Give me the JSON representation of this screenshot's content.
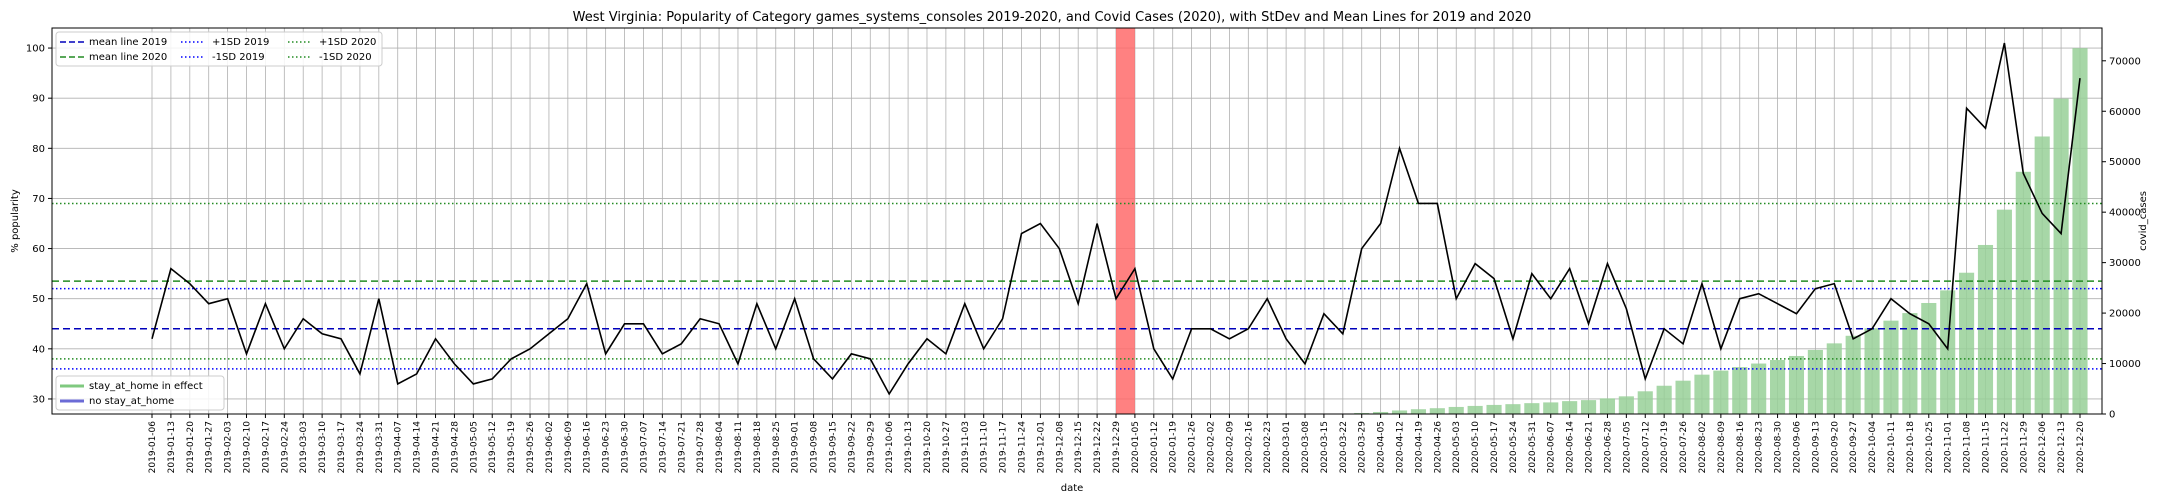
{
  "chart_data": {
    "type": "line",
    "title": "West Virginia: Popularity of Category games_systems_consoles 2019-2020, and Covid Cases (2020), with StDev and Mean Lines for 2019 and 2020",
    "xlabel": "date",
    "ylabel": "% popularity",
    "ylabel_right": "covid_cases",
    "ylim": [
      27,
      104
    ],
    "ylim_right": [
      0,
      76500
    ],
    "yticks": [
      30,
      40,
      50,
      60,
      70,
      80,
      90,
      100
    ],
    "yticks_right": [
      0,
      10000,
      20000,
      30000,
      40000,
      50000,
      60000,
      70000
    ],
    "grid": true,
    "legend_position": "top-left",
    "x": [
      "2019-01-06",
      "2019-01-13",
      "2019-01-20",
      "2019-01-27",
      "2019-02-03",
      "2019-02-10",
      "2019-02-17",
      "2019-02-24",
      "2019-03-03",
      "2019-03-10",
      "2019-03-17",
      "2019-03-24",
      "2019-03-31",
      "2019-04-07",
      "2019-04-14",
      "2019-04-21",
      "2019-04-28",
      "2019-05-05",
      "2019-05-12",
      "2019-05-19",
      "2019-05-26",
      "2019-06-02",
      "2019-06-09",
      "2019-06-16",
      "2019-06-23",
      "2019-06-30",
      "2019-07-07",
      "2019-07-14",
      "2019-07-21",
      "2019-07-28",
      "2019-08-04",
      "2019-08-11",
      "2019-08-18",
      "2019-08-25",
      "2019-09-01",
      "2019-09-08",
      "2019-09-15",
      "2019-09-22",
      "2019-09-29",
      "2019-10-06",
      "2019-10-13",
      "2019-10-20",
      "2019-10-27",
      "2019-11-03",
      "2019-11-10",
      "2019-11-17",
      "2019-11-24",
      "2019-12-01",
      "2019-12-08",
      "2019-12-15",
      "2019-12-22",
      "2019-12-29",
      "2020-01-05",
      "2020-01-12",
      "2020-01-19",
      "2020-01-26",
      "2020-02-02",
      "2020-02-09",
      "2020-02-16",
      "2020-02-23",
      "2020-03-01",
      "2020-03-08",
      "2020-03-15",
      "2020-03-22",
      "2020-03-29",
      "2020-04-05",
      "2020-04-12",
      "2020-04-19",
      "2020-04-26",
      "2020-05-03",
      "2020-05-10",
      "2020-05-17",
      "2020-05-24",
      "2020-05-31",
      "2020-06-07",
      "2020-06-14",
      "2020-06-21",
      "2020-06-28",
      "2020-07-05",
      "2020-07-12",
      "2020-07-19",
      "2020-07-26",
      "2020-08-02",
      "2020-08-09",
      "2020-08-16",
      "2020-08-23",
      "2020-08-30",
      "2020-09-06",
      "2020-09-13",
      "2020-09-20",
      "2020-09-27",
      "2020-10-04",
      "2020-10-11",
      "2020-10-18",
      "2020-10-25",
      "2020-11-01",
      "2020-11-08",
      "2020-11-15",
      "2020-11-22",
      "2020-11-29",
      "2020-12-06",
      "2020-12-13",
      "2020-12-20"
    ],
    "xtick_labels": [
      "2019-01-06",
      "2019-01-13",
      "2019-01-20",
      "2019-01-27",
      "2019-02-03",
      "2019-02-10",
      "2019-02-17",
      "2019-02-24",
      "2019-03-03",
      "2019-03-10",
      "2019-03-17",
      "2019-03-24",
      "2019-03-31",
      "2019-04-07",
      "2019-04-14",
      "2019-04-21",
      "2019-04-28",
      "2019-05-05",
      "2019-05-12",
      "2019-05-19",
      "2019-05-26",
      "2019-06-02",
      "2019-06-09",
      "2019-06-16",
      "2019-06-23",
      "2019-06-30",
      "2019-07-07",
      "2019-07-14",
      "2019-07-21",
      "2019-07-28",
      "2019-08-04",
      "2019-08-11",
      "2019-08-18",
      "2019-08-25",
      "2019-09-01",
      "2019-09-08",
      "2019-09-15",
      "2019-09-22",
      "2019-09-29",
      "2019-10-06",
      "2019-10-13",
      "2019-10-20",
      "2019-10-27",
      "2019-11-03",
      "2019-11-10",
      "2019-11-17",
      "2019-11-24",
      "2019-12-01",
      "2019-12-08",
      "2019-12-15",
      "2019-12-22",
      "2019-12-29",
      "2020-01-05",
      "2020-01-12",
      "2020-01-19",
      "2020-01-26",
      "2020-02-02",
      "2020-02-09",
      "2020-02-16",
      "2020-02-23",
      "2020-03-01",
      "2020-03-08",
      "2020-03-15",
      "2020-03-22",
      "2020-03-29",
      "2020-04-05",
      "2020-04-12",
      "2020-04-19",
      "2020-04-26",
      "2020-05-03",
      "2020-05-10",
      "2020-05-17",
      "2020-05-24",
      "2020-05-31",
      "2020-06-07",
      "2020-06-14",
      "2020-06-21",
      "2020-06-28",
      "2020-07-05",
      "2020-07-12",
      "2020-07-19",
      "2020-07-26",
      "2020-08-02",
      "2020-08-09",
      "2020-08-16",
      "2020-08-23",
      "2020-08-30",
      "2020-09-06",
      "2020-09-13",
      "2020-09-20",
      "2020-09-27",
      "2020-10-04",
      "2020-10-11",
      "2020-10-18",
      "2020-10-25",
      "2020-11-01",
      "2020-11-08",
      "2020-11-15",
      "2020-11-22",
      "2020-11-29",
      "2020-12-06",
      "2020-12-13",
      "2020-12-20"
    ],
    "popularity": [
      42,
      56,
      53,
      49,
      50,
      39,
      49,
      40,
      46,
      43,
      42,
      35,
      50,
      33,
      35,
      42,
      37,
      33,
      34,
      38,
      40,
      43,
      46,
      53,
      39,
      45,
      45,
      39,
      41,
      46,
      45,
      37,
      49,
      40,
      50,
      38,
      34,
      39,
      38,
      31,
      37,
      42,
      39,
      49,
      40,
      46,
      63,
      65,
      60,
      49,
      65,
      50,
      56,
      40,
      34,
      44,
      44,
      42,
      44,
      50,
      42,
      37,
      47,
      43,
      60,
      65,
      80,
      69,
      69,
      50,
      57,
      54,
      42,
      55,
      50,
      56,
      45,
      57,
      48,
      34,
      44,
      41,
      53,
      40,
      50,
      51,
      49,
      47,
      52,
      53,
      42,
      44,
      50,
      47,
      45,
      40,
      88,
      84,
      101,
      75,
      67,
      63,
      94
    ],
    "covid_cases": [
      null,
      null,
      null,
      null,
      null,
      null,
      null,
      null,
      null,
      null,
      null,
      null,
      null,
      null,
      null,
      null,
      null,
      null,
      null,
      null,
      null,
      null,
      null,
      null,
      null,
      null,
      null,
      null,
      null,
      null,
      null,
      null,
      null,
      null,
      null,
      null,
      null,
      null,
      null,
      null,
      null,
      null,
      null,
      null,
      null,
      null,
      null,
      null,
      null,
      null,
      null,
      null,
      null,
      null,
      null,
      null,
      null,
      null,
      null,
      null,
      null,
      null,
      null,
      null,
      200,
      400,
      700,
      950,
      1150,
      1400,
      1600,
      1800,
      1950,
      2150,
      2300,
      2550,
      2750,
      3100,
      3500,
      4500,
      5600,
      6600,
      7800,
      8600,
      9300,
      10000,
      10700,
      11500,
      12700,
      14000,
      15500,
      17000,
      18500,
      20000,
      22000,
      24500,
      28000,
      33500,
      40500,
      48000,
      55000,
      62500,
      72500
    ],
    "mean_2019": 44.0,
    "mean_2020": 53.5,
    "plus1sd_2019": 52.0,
    "minus1sd_2019": 36.0,
    "plus1sd_2020": 69.0,
    "minus1sd_2020": 38.0,
    "stay_at_home_span": [
      "2019-12-29",
      "2020-01-05"
    ],
    "legend": {
      "col1": [
        "mean line 2019",
        "mean line 2020"
      ],
      "col2": [
        "+1SD 2019",
        "-1SD 2019"
      ],
      "col3": [
        "+1SD 2020",
        "-1SD 2020"
      ],
      "bottom": [
        "stay_at_home in effect",
        "no stay_at_home"
      ]
    },
    "colors": {
      "popularity_line": "#000000",
      "mean_2019": "#0000bb",
      "mean_2020": "#228B22",
      "sd_2019": "#0000ff",
      "sd_2020": "#228B22",
      "bars": "#98d098",
      "stay_at_home_span": "#ff6b6b",
      "grid": "#b0b0b0"
    }
  }
}
